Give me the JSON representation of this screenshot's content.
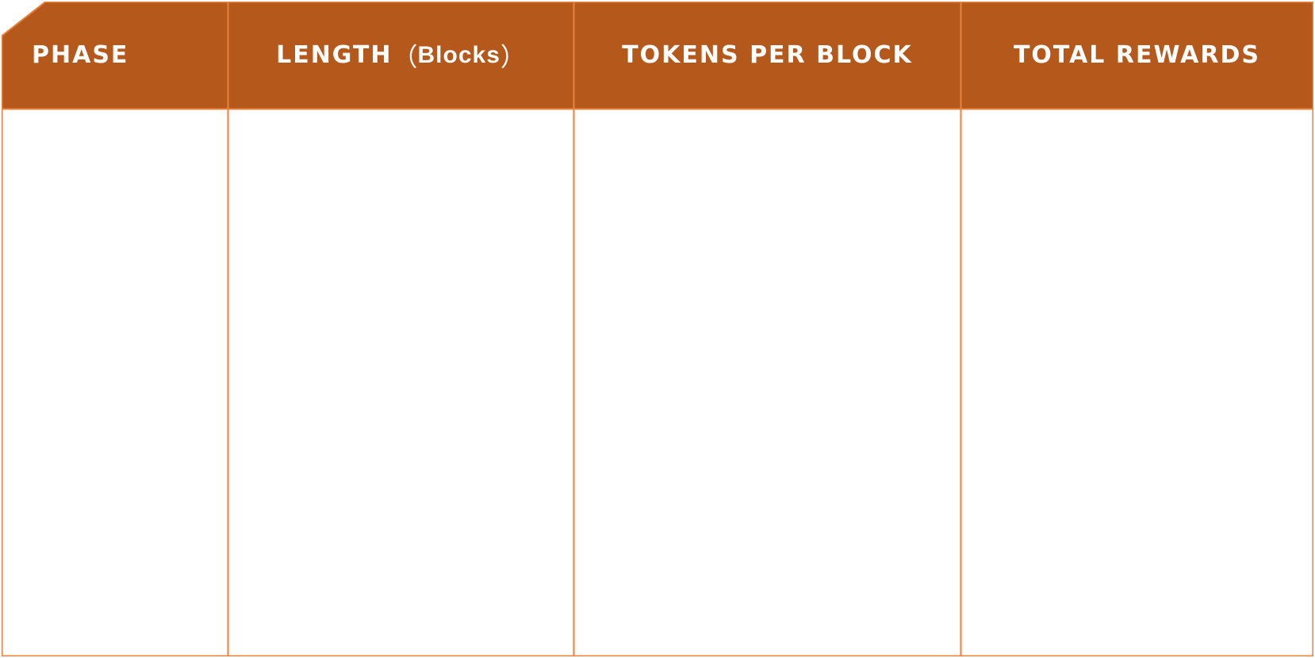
{
  "colors": {
    "header_fill": "#b4581b",
    "border": "#e8823d",
    "body_fill": "#ffffff",
    "header_text": "#ffffff"
  },
  "table": {
    "headers": {
      "phase": "PHASE",
      "length_main": "LENGTH",
      "length_open": "（",
      "length_unit": "Blocks",
      "length_close": "）",
      "tokens_per_block": "TOKENS PER BLOCK",
      "total_rewards": "TOTAL REWARDS"
    },
    "rows": []
  }
}
